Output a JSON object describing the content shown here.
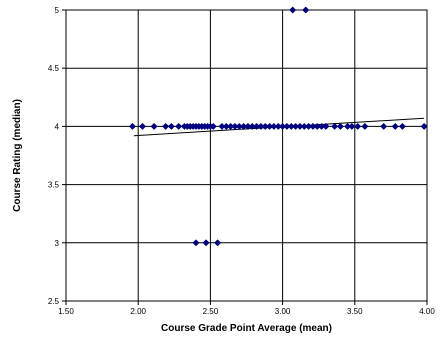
{
  "chart_data": {
    "type": "scatter",
    "title": "",
    "xlabel": "Course Grade Point Average (mean)",
    "ylabel": "Course Rating (median)",
    "xlim": [
      1.5,
      4.0
    ],
    "ylim": [
      2.5,
      5.0
    ],
    "x_ticks": [
      "1.50",
      "2.00",
      "2.50",
      "3.00",
      "3.50",
      "4.00"
    ],
    "y_ticks": [
      "2.5",
      "3",
      "3.5",
      "4",
      "4.5",
      "5"
    ],
    "grid": true,
    "legend": "none",
    "marker_color": "#000080",
    "trendline_color": "#000000",
    "trendline": {
      "x": [
        1.97,
        3.98
      ],
      "y": [
        3.92,
        4.07
      ]
    },
    "series": [
      {
        "points": [
          [
            1.96,
            4
          ],
          [
            2.03,
            4
          ],
          [
            2.11,
            4
          ],
          [
            2.19,
            4
          ],
          [
            2.23,
            4
          ],
          [
            2.28,
            4
          ],
          [
            2.32,
            4
          ],
          [
            2.34,
            4
          ],
          [
            2.36,
            4
          ],
          [
            2.38,
            4
          ],
          [
            2.4,
            4
          ],
          [
            2.42,
            4
          ],
          [
            2.44,
            4
          ],
          [
            2.46,
            4
          ],
          [
            2.48,
            4
          ],
          [
            2.5,
            4
          ],
          [
            2.52,
            4
          ],
          [
            2.58,
            4
          ],
          [
            2.61,
            4
          ],
          [
            2.64,
            4
          ],
          [
            2.67,
            4
          ],
          [
            2.7,
            4
          ],
          [
            2.73,
            4
          ],
          [
            2.76,
            4
          ],
          [
            2.79,
            4
          ],
          [
            2.82,
            4
          ],
          [
            2.85,
            4
          ],
          [
            2.88,
            4
          ],
          [
            2.91,
            4
          ],
          [
            2.94,
            4
          ],
          [
            2.97,
            4
          ],
          [
            3.0,
            4
          ],
          [
            3.03,
            4
          ],
          [
            3.06,
            4
          ],
          [
            3.09,
            4
          ],
          [
            3.12,
            4
          ],
          [
            3.15,
            4
          ],
          [
            3.18,
            4
          ],
          [
            3.21,
            4
          ],
          [
            3.24,
            4
          ],
          [
            3.27,
            4
          ],
          [
            3.3,
            4
          ],
          [
            3.36,
            4
          ],
          [
            3.4,
            4
          ],
          [
            3.45,
            4
          ],
          [
            3.48,
            4
          ],
          [
            3.52,
            4
          ],
          [
            3.57,
            4
          ],
          [
            3.7,
            4
          ],
          [
            3.78,
            4
          ],
          [
            3.83,
            4
          ],
          [
            3.98,
            4
          ],
          [
            3.07,
            5
          ],
          [
            3.16,
            5
          ],
          [
            2.4,
            3
          ],
          [
            2.47,
            3
          ],
          [
            2.55,
            3
          ]
        ]
      }
    ]
  }
}
